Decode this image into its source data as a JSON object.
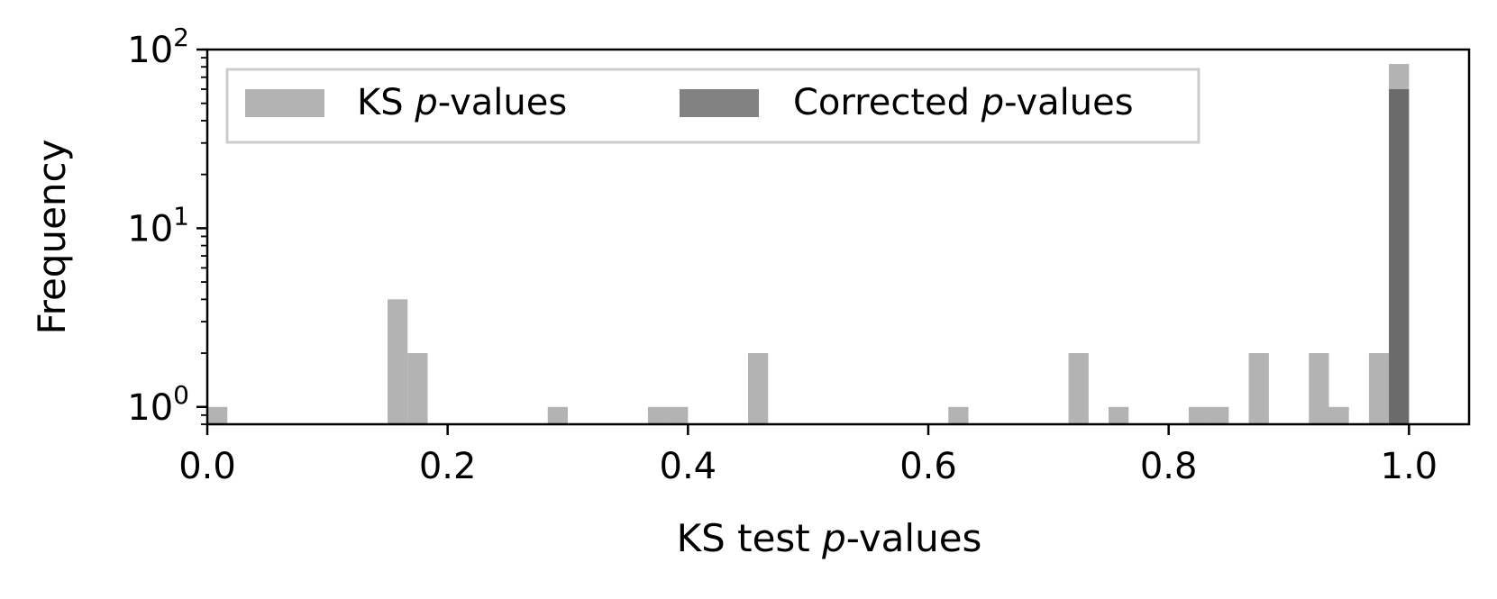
{
  "chart_data": {
    "type": "histogram",
    "title": "",
    "xlabel": "KS test p-values",
    "ylabel": "Frequency",
    "xlim": [
      0.0,
      1.05
    ],
    "ylim": [
      0.8,
      100
    ],
    "yscale": "log",
    "bin_width": 0.0167,
    "legend": {
      "position": "top-left",
      "frameon": true,
      "ncol": 2
    },
    "xticks": [
      "0.0",
      "0.2",
      "0.4",
      "0.6",
      "0.8",
      "1.0"
    ],
    "yticks": [
      {
        "value": 1,
        "base": "10",
        "exp": "0"
      },
      {
        "value": 10,
        "base": "10",
        "exp": "1"
      },
      {
        "value": 100,
        "base": "10",
        "exp": "2"
      }
    ],
    "series": [
      {
        "name": "KS p-values",
        "color": "#b3b3b3",
        "opacity": 1.0,
        "bins": [
          {
            "x0": 0.0,
            "count": 1
          },
          {
            "x0": 0.15,
            "count": 4
          },
          {
            "x0": 0.1667,
            "count": 2
          },
          {
            "x0": 0.2833,
            "count": 1
          },
          {
            "x0": 0.3667,
            "count": 1
          },
          {
            "x0": 0.3833,
            "count": 1
          },
          {
            "x0": 0.45,
            "count": 2
          },
          {
            "x0": 0.6167,
            "count": 1
          },
          {
            "x0": 0.7167,
            "count": 2
          },
          {
            "x0": 0.75,
            "count": 1
          },
          {
            "x0": 0.8167,
            "count": 1
          },
          {
            "x0": 0.8333,
            "count": 1
          },
          {
            "x0": 0.8667,
            "count": 2
          },
          {
            "x0": 0.9167,
            "count": 2
          },
          {
            "x0": 0.9333,
            "count": 1
          },
          {
            "x0": 0.9667,
            "count": 2
          },
          {
            "x0": 0.9833,
            "count": 83
          }
        ]
      },
      {
        "name": "Corrected p-values",
        "color": "#4d4d4d",
        "opacity": 0.7,
        "bins": [
          {
            "x0": 0.9833,
            "count": 60
          }
        ]
      }
    ]
  },
  "legend_labels": [
    {
      "prefix": "KS ",
      "italic": "p",
      "suffix": "-values"
    },
    {
      "prefix": "Corrected ",
      "italic": "p",
      "suffix": "-values"
    }
  ],
  "xlabel_parts": {
    "prefix": "KS test ",
    "italic": "p",
    "suffix": "-values"
  },
  "ylabel_text": "Frequency"
}
